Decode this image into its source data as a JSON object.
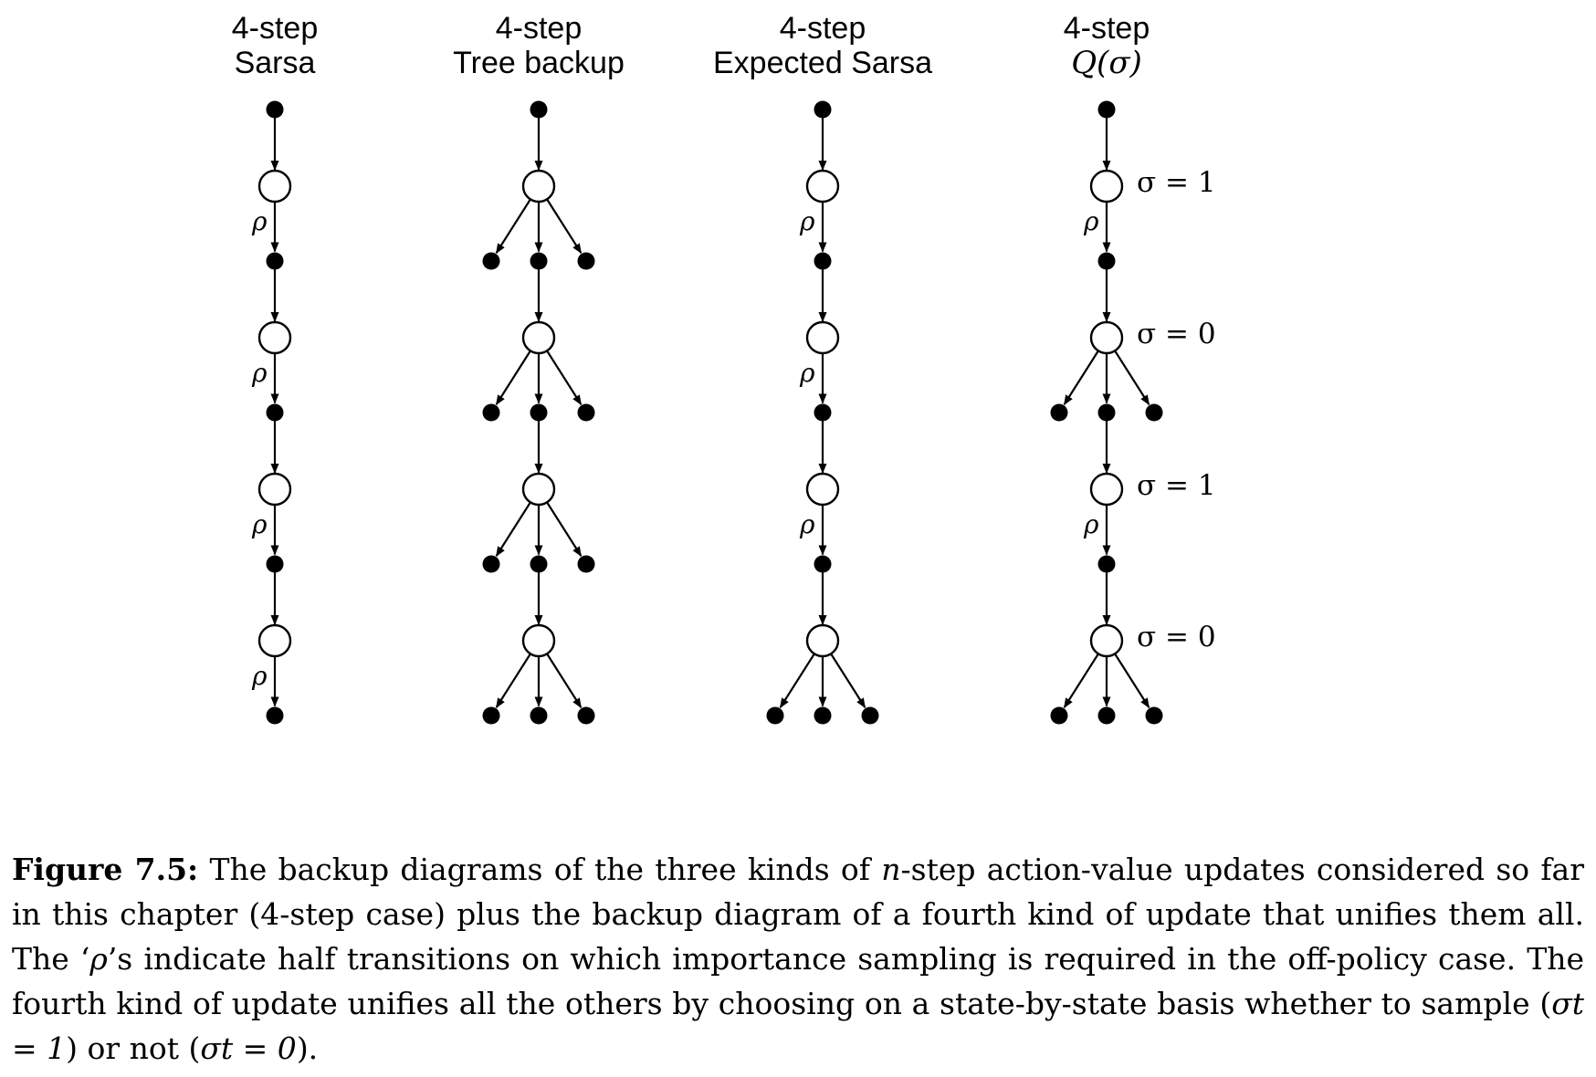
{
  "columns": [
    {
      "title_line1": "4-step",
      "title_line2": "Sarsa",
      "math_title": false,
      "steps": [
        "linear",
        "linear",
        "linear",
        "linear"
      ],
      "rho": [
        true,
        true,
        true,
        true
      ],
      "sigma": [
        null,
        null,
        null,
        null
      ]
    },
    {
      "title_line1": "4-step",
      "title_line2": "Tree backup",
      "math_title": false,
      "steps": [
        "branch",
        "branch",
        "branch",
        "branch"
      ],
      "rho": [
        false,
        false,
        false,
        false
      ],
      "sigma": [
        null,
        null,
        null,
        null
      ]
    },
    {
      "title_line1": "4-step",
      "title_line2": "Expected Sarsa",
      "math_title": false,
      "steps": [
        "linear",
        "linear",
        "linear",
        "branch"
      ],
      "rho": [
        true,
        true,
        true,
        false
      ],
      "sigma": [
        null,
        null,
        null,
        null
      ]
    },
    {
      "title_line1": "4-step",
      "title_line2": "Q(σ)",
      "math_title": true,
      "steps": [
        "linear",
        "branch",
        "linear",
        "branch"
      ],
      "rho": [
        true,
        false,
        true,
        false
      ],
      "sigma": [
        "σ = 1",
        "σ = 0",
        "σ = 1",
        "σ = 0"
      ]
    }
  ],
  "rho_symbol": "ρ",
  "caption": {
    "label": "Figure 7.5:",
    "text_1": " The backup diagrams of the three kinds of ",
    "n": "n",
    "text_2": "-step action-value updates considered so far in this chapter (4-step case) plus the backup diagram of a fourth kind of update that unifies them all. The ‘",
    "rho": "ρ",
    "text_3": "’s indicate half transitions on which importance sampling is required in the off-policy case. The fourth kind of update unifies all the others by choosing on a state-by-state basis whether to sample (",
    "sample_math": "σt = 1",
    "text_4": ") or not (",
    "nosample_math": "σt = 0",
    "text_5": ")."
  }
}
